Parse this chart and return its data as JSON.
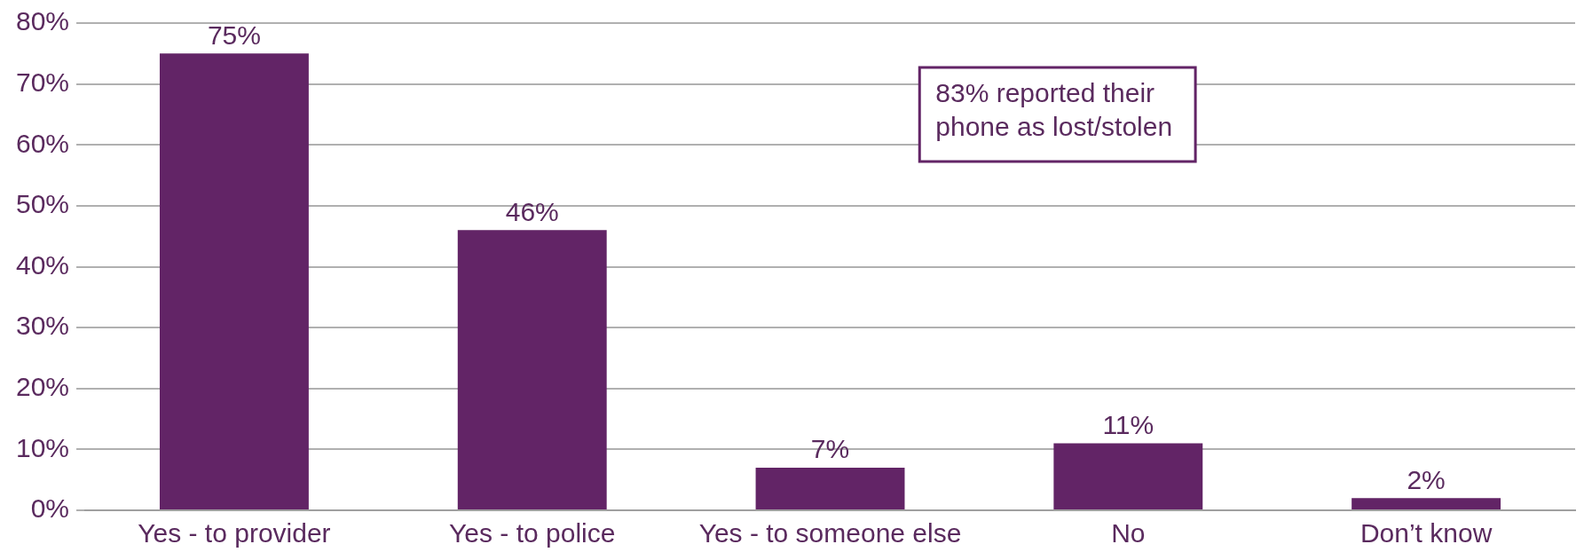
{
  "chart_data": {
    "type": "bar",
    "categories": [
      "Yes - to provider",
      "Yes - to police",
      "Yes - to someone else",
      "No",
      "Don’t know"
    ],
    "values": [
      75,
      46,
      7,
      11,
      2
    ],
    "color": "#622466",
    "ylim": [
      0,
      80
    ],
    "yticks": [
      {
        "value": 0,
        "label": "0%"
      },
      {
        "value": 10,
        "label": "10%"
      },
      {
        "value": 20,
        "label": "20%"
      },
      {
        "value": 30,
        "label": "30%"
      },
      {
        "value": 40,
        "label": "40%"
      },
      {
        "value": 50,
        "label": "50%"
      },
      {
        "value": 60,
        "label": "60%"
      },
      {
        "value": 70,
        "label": "70%"
      },
      {
        "value": 80,
        "label": "80%"
      }
    ],
    "value_labels": [
      "75%",
      "46%",
      "7%",
      "11%",
      "2%"
    ],
    "grid": "y",
    "legend": false,
    "annotations": [
      "83% reported their phone as lost/stolen"
    ]
  }
}
